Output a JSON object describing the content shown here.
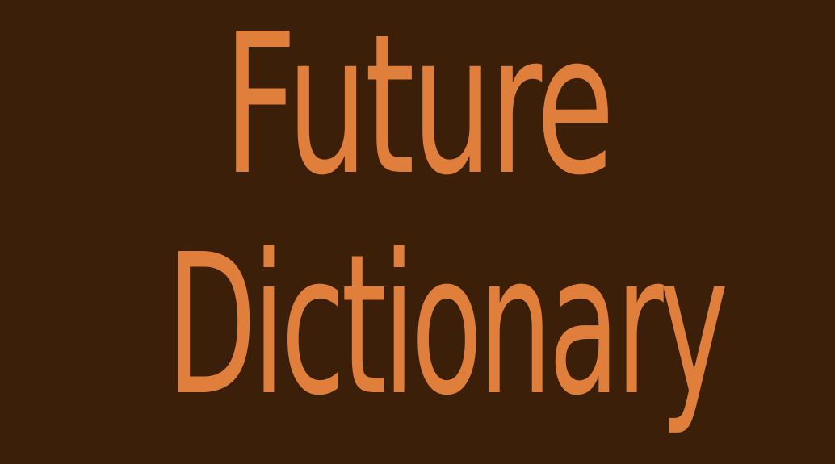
{
  "title": {
    "line1": "Future",
    "line2": "Dictionary"
  },
  "colors": {
    "background": "#3c1f08",
    "text": "#e07e3c"
  }
}
